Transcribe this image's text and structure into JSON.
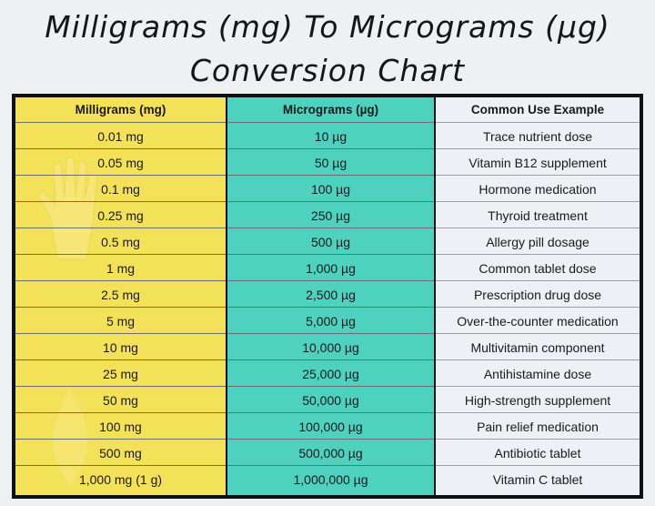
{
  "title": {
    "line1": "Milligrams (mg) To Micrograms (µg)",
    "line2": "Conversion Chart"
  },
  "table": {
    "headers": {
      "mg": "Milligrams (mg)",
      "ug": "Micrograms (µg)",
      "example": "Common Use Example"
    },
    "rows": [
      {
        "mg": "0.01 mg",
        "ug": "10 µg",
        "example": "Trace nutrient dose"
      },
      {
        "mg": "0.05 mg",
        "ug": "50 µg",
        "example": "Vitamin B12 supplement"
      },
      {
        "mg": "0.1 mg",
        "ug": "100 µg",
        "example": "Hormone medication"
      },
      {
        "mg": "0.25 mg",
        "ug": "250 µg",
        "example": "Thyroid treatment"
      },
      {
        "mg": "0.5 mg",
        "ug": "500 µg",
        "example": "Allergy pill dosage"
      },
      {
        "mg": "1 mg",
        "ug": "1,000 µg",
        "example": "Common tablet dose"
      },
      {
        "mg": "2.5 mg",
        "ug": "2,500 µg",
        "example": "Prescription drug dose"
      },
      {
        "mg": "5 mg",
        "ug": "5,000 µg",
        "example": "Over-the-counter medication"
      },
      {
        "mg": "10 mg",
        "ug": "10,000 µg",
        "example": "Multivitamin component"
      },
      {
        "mg": "25 mg",
        "ug": "25,000 µg",
        "example": "Antihistamine dose"
      },
      {
        "mg": "50 mg",
        "ug": "50,000 µg",
        "example": "High-strength supplement"
      },
      {
        "mg": "100 mg",
        "ug": "100,000 µg",
        "example": "Pain relief medication"
      },
      {
        "mg": "500 mg",
        "ug": "500,000 µg",
        "example": "Antibiotic tablet"
      },
      {
        "mg": "1,000 mg (1 g)",
        "ug": "1,000,000 µg",
        "example": "Vitamin C tablet"
      }
    ]
  },
  "colors": {
    "mg_column": "#f4e15a",
    "ug_column": "#4fd1c0",
    "example_column": "#eef0f6",
    "border": "#111111"
  },
  "decor": {
    "watermark_icon": "hand-icon"
  }
}
